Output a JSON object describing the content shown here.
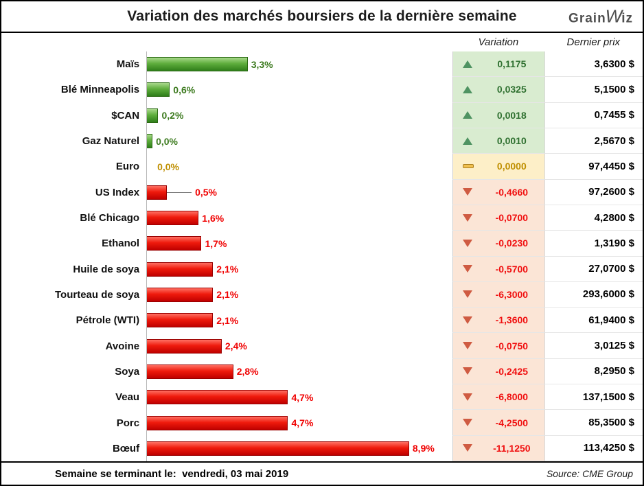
{
  "header": {
    "title": "Variation des marchés boursiers de la dernière semaine",
    "logo": {
      "part1": "Grain",
      "part2": "W",
      "part3": "iz"
    }
  },
  "columns": {
    "variation": "Variation",
    "price": "Dernier prix"
  },
  "footer": {
    "left": "Semaine se terminant le:  vendredi, 03 mai 2019",
    "right": "Source: CME Group"
  },
  "colors": {
    "bar_positive": "#4f9a2a",
    "bar_negative": "#ee1c0f",
    "variation_bg_positive": "#d9ecd0",
    "variation_bg_negative": "#fbe5d6",
    "variation_bg_flat": "#fdefc8",
    "text_positive": "#2f7030",
    "text_negative": "#f01010",
    "text_flat": "#bf8f00"
  },
  "chart_data": {
    "type": "bar",
    "orientation": "horizontal",
    "title": "Variation des marchés boursiers de la dernière semaine",
    "categories": [
      "Maïs",
      "Blé Minneapolis",
      "$CAN",
      "Gaz Naturel",
      "Euro",
      "US Index",
      "Blé Chicago",
      "Ethanol",
      "Huile de soya",
      "Tourteau de soya",
      "Pétrole (WTI)",
      "Avoine",
      "Soya",
      "Veau",
      "Porc",
      "Bœuf"
    ],
    "series": [
      {
        "name": "Variation hebdomadaire (%)",
        "values": [
          3.3,
          0.6,
          0.2,
          0.0,
          0.0,
          -0.5,
          -1.6,
          -1.7,
          -2.1,
          -2.1,
          -2.1,
          -2.4,
          -2.8,
          -4.7,
          -4.7,
          -8.9
        ]
      },
      {
        "name": "Variation",
        "values": [
          0.1175,
          0.0325,
          0.0018,
          0.001,
          0.0,
          -0.466,
          -0.07,
          -0.023,
          -0.57,
          -6.3,
          -1.36,
          -0.075,
          -0.2425,
          -6.8,
          -4.25,
          -11.125
        ]
      },
      {
        "name": "Dernier prix ($)",
        "values": [
          3.63,
          5.15,
          0.7455,
          2.567,
          97.445,
          97.26,
          4.28,
          1.319,
          27.07,
          293.6,
          61.94,
          3.0125,
          8.295,
          137.15,
          85.35,
          113.425
        ]
      }
    ],
    "value_labels_shown": true,
    "legend": "none",
    "grid": "off"
  },
  "rows": [
    {
      "label": "Maïs",
      "pct": 3.3,
      "pct_label": "3,3%",
      "direction": "up",
      "leader": false,
      "variation": "0,1175",
      "price": "3,6300 $"
    },
    {
      "label": "Blé Minneapolis",
      "pct": 0.6,
      "pct_label": "0,6%",
      "direction": "up",
      "leader": false,
      "variation": "0,0325",
      "price": "5,1500 $"
    },
    {
      "label": "$CAN",
      "pct": 0.2,
      "pct_label": "0,2%",
      "direction": "up",
      "leader": false,
      "variation": "0,0018",
      "price": "0,7455 $"
    },
    {
      "label": "Gaz Naturel",
      "pct": 0.0,
      "pct_label": "0,0%",
      "direction": "up",
      "leader": false,
      "variation": "0,0010",
      "price": "2,5670 $"
    },
    {
      "label": "Euro",
      "pct": 0.0,
      "pct_label": "0,0%",
      "direction": "flat",
      "leader": false,
      "variation": "0,0000",
      "price": "97,4450 $"
    },
    {
      "label": "US Index",
      "pct": 0.5,
      "pct_label": "0,5%",
      "direction": "down",
      "leader": true,
      "variation": "-0,4660",
      "price": "97,2600 $"
    },
    {
      "label": "Blé Chicago",
      "pct": 1.6,
      "pct_label": "1,6%",
      "direction": "down",
      "leader": false,
      "variation": "-0,0700",
      "price": "4,2800 $"
    },
    {
      "label": "Ethanol",
      "pct": 1.7,
      "pct_label": "1,7%",
      "direction": "down",
      "leader": false,
      "variation": "-0,0230",
      "price": "1,3190 $"
    },
    {
      "label": "Huile de soya",
      "pct": 2.1,
      "pct_label": "2,1%",
      "direction": "down",
      "leader": false,
      "variation": "-0,5700",
      "price": "27,0700 $"
    },
    {
      "label": "Tourteau de soya",
      "pct": 2.1,
      "pct_label": "2,1%",
      "direction": "down",
      "leader": false,
      "variation": "-6,3000",
      "price": "293,6000 $"
    },
    {
      "label": "Pétrole (WTI)",
      "pct": 2.1,
      "pct_label": "2,1%",
      "direction": "down",
      "leader": false,
      "variation": "-1,3600",
      "price": "61,9400 $"
    },
    {
      "label": "Avoine",
      "pct": 2.4,
      "pct_label": "2,4%",
      "direction": "down",
      "leader": false,
      "variation": "-0,0750",
      "price": "3,0125 $"
    },
    {
      "label": "Soya",
      "pct": 2.8,
      "pct_label": "2,8%",
      "direction": "down",
      "leader": false,
      "variation": "-0,2425",
      "price": "8,2950 $"
    },
    {
      "label": "Veau",
      "pct": 4.7,
      "pct_label": "4,7%",
      "direction": "down",
      "leader": false,
      "variation": "-6,8000",
      "price": "137,1500 $"
    },
    {
      "label": "Porc",
      "pct": 4.7,
      "pct_label": "4,7%",
      "direction": "down",
      "leader": false,
      "variation": "-4,2500",
      "price": "85,3500 $"
    },
    {
      "label": "Bœuf",
      "pct": 8.9,
      "pct_label": "8,9%",
      "direction": "down",
      "leader": false,
      "variation": "-11,1250",
      "price": "113,4250 $"
    }
  ]
}
